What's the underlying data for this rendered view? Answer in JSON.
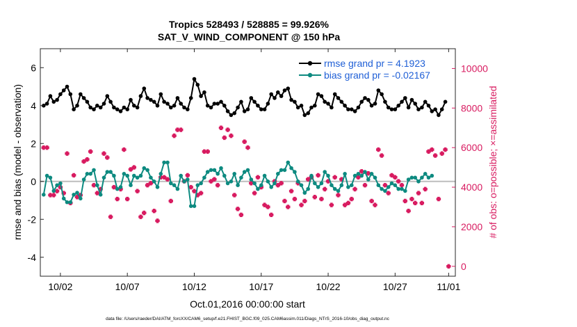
{
  "chart_data": {
    "type": "line",
    "title_line1": "Tropics 528493 / 528885 = 99.926%",
    "title_line2": "SAT_V_WIND_COMPONENT @ 150 hPa",
    "xlabel": "Oct.01,2016 00:00:00 start",
    "ylabel_left": "rmse and bias (model - observation)",
    "ylabel_right": "# of obs: o=possible; ×=assimilated",
    "footnote": "data file: /Users/raeder/DAI/ATM_forcXX/CAM6_setup/f.e21.FHIST_BGC.f09_025.CAM6assim.011/Diags_NTrS_2016-10/obs_diag_output.nc",
    "xlim": [
      0.5,
      31.5
    ],
    "ylim_left": [
      -5,
      7
    ],
    "ylim_right": [
      -500,
      11000
    ],
    "x_ticks": [
      {
        "value": 2,
        "label": "10/02"
      },
      {
        "value": 7,
        "label": "10/07"
      },
      {
        "value": 12,
        "label": "10/12"
      },
      {
        "value": 17,
        "label": "10/17"
      },
      {
        "value": 22,
        "label": "10/22"
      },
      {
        "value": 27,
        "label": "10/27"
      },
      {
        "value": 31,
        "label": "11/01"
      }
    ],
    "y_ticks_left": [
      {
        "value": -4,
        "label": "-4"
      },
      {
        "value": -2,
        "label": "-2"
      },
      {
        "value": 0,
        "label": "0"
      },
      {
        "value": 2,
        "label": "2"
      },
      {
        "value": 4,
        "label": "4"
      },
      {
        "value": 6,
        "label": "6"
      }
    ],
    "y_ticks_right": [
      {
        "value": 0,
        "label": "0"
      },
      {
        "value": 2000,
        "label": "2000"
      },
      {
        "value": 4000,
        "label": "4000"
      },
      {
        "value": 6000,
        "label": "6000"
      },
      {
        "value": 8000,
        "label": "8000"
      },
      {
        "value": 10000,
        "label": "10000"
      }
    ],
    "legend": [
      {
        "label": "rmse grand pr = 4.1923",
        "color": "#000000"
      },
      {
        "label": "bias grand pr = -0.02167",
        "color": "#0d8a80"
      }
    ],
    "colors": {
      "rmse": "#000000",
      "bias": "#0d8a80",
      "obs": "#d81b60",
      "text_blue": "#1f5fd6",
      "zero_line": "#bdbdbd"
    },
    "series": [
      {
        "name": "rmse",
        "axis": "left",
        "x_start": 0.75,
        "x_step": 0.25,
        "values": [
          4.0,
          4.1,
          4.5,
          4.2,
          4.3,
          4.6,
          4.8,
          5.0,
          4.6,
          3.8,
          4.0,
          4.6,
          4.4,
          4.2,
          3.9,
          3.8,
          4.0,
          3.9,
          4.1,
          4.5,
          4.2,
          3.9,
          3.8,
          3.7,
          3.9,
          3.8,
          4.3,
          4.0,
          3.9,
          4.5,
          4.9,
          4.4,
          4.3,
          4.2,
          4.0,
          4.6,
          4.2,
          4.1,
          3.9,
          4.0,
          4.4,
          4.1,
          3.9,
          3.8,
          4.4,
          5.4,
          5.1,
          4.5,
          4.7,
          4.0,
          3.9,
          4.1,
          4.1,
          4.2,
          4.0,
          3.7,
          3.5,
          3.6,
          3.9,
          4.2,
          3.7,
          3.8,
          4.4,
          4.2,
          4.0,
          3.8,
          3.8,
          4.1,
          4.6,
          4.4,
          4.7,
          4.5,
          4.8,
          4.9,
          4.3,
          4.2,
          3.9,
          4.0,
          3.5,
          3.6,
          3.9,
          4.0,
          4.6,
          4.5,
          4.2,
          4.1,
          3.9,
          4.6,
          4.4,
          4.2,
          4.0,
          3.8,
          3.8,
          3.7,
          3.9,
          4.2,
          4.4,
          4.3,
          4.0,
          4.1,
          4.8,
          4.6,
          4.2,
          3.9,
          3.8,
          3.8,
          4.0,
          4.2,
          4.4,
          3.9,
          4.3,
          4.1,
          3.8,
          3.9,
          4.2,
          4.0,
          3.7,
          3.8,
          3.5,
          3.8,
          4.2
        ]
      },
      {
        "name": "bias",
        "axis": "left",
        "x_start": 0.75,
        "x_step": 0.25,
        "values": [
          -0.7,
          0.3,
          0.2,
          -0.5,
          -0.2,
          -0.1,
          -0.9,
          -1.1,
          -1.1,
          -0.7,
          -0.6,
          -0.9,
          0.1,
          0.4,
          0.4,
          0.6,
          -0.2,
          -0.7,
          0.2,
          0.5,
          0.5,
          0.3,
          -0.4,
          -0.3,
          0.4,
          0.3,
          -0.2,
          0.3,
          0.2,
          0.3,
          0.7,
          0.6,
          0.2,
          0.0,
          -0.3,
          0.4,
          1.0,
          1.0,
          -0.1,
          -0.2,
          -0.4,
          0.3,
          0.0,
          0.1,
          -1.3,
          -1.3,
          -0.2,
          -0.1,
          0.2,
          0.5,
          0.6,
          0.6,
          0.4,
          0.7,
          0.3,
          -0.1,
          0.0,
          0.4,
          -0.2,
          0.2,
          0.5,
          0.6,
          0.1,
          -0.1,
          -0.4,
          -0.2,
          0.3,
          0.0,
          -0.3,
          -0.1,
          0.4,
          0.6,
          0.6,
          1.0,
          0.7,
          0.5,
          0.0,
          -0.2,
          -0.6,
          -0.4,
          0.3,
          -0.1,
          -0.3,
          -0.1,
          0.5,
          0.3,
          -0.2,
          -0.4,
          -0.5,
          -0.2,
          0.4,
          -0.3,
          -0.2,
          0.3,
          0.4,
          0.3,
          0.5,
          0.1,
          0.4,
          0.2,
          -0.2,
          -0.4,
          -0.5,
          -0.3,
          -0.1,
          -0.2,
          -0.4,
          -0.4,
          -0.5,
          0.1,
          0.2,
          0.2,
          0.0,
          0.2,
          0.4,
          0.2,
          0.3
        ]
      },
      {
        "name": "observations",
        "axis": "right",
        "x_start": 0.75,
        "x_step": 0.25,
        "values": [
          6000,
          6000,
          3600,
          3600,
          3800,
          4000,
          3700,
          5700,
          3200,
          4600,
          3500,
          3600,
          5300,
          5400,
          5800,
          4100,
          3700,
          3900,
          5700,
          5500,
          2500,
          4000,
          3400,
          3900,
          5900,
          3400,
          4900,
          5000,
          3800,
          2500,
          2700,
          4100,
          4200,
          2800,
          2300,
          4500,
          4500,
          4400,
          3300,
          6600,
          6900,
          6900,
          4300,
          4600,
          4000,
          3800,
          3600,
          3700,
          5800,
          5800,
          4300,
          4400,
          4100,
          7000,
          6500,
          6900,
          6600,
          3600,
          2900,
          2600,
          6300,
          6000,
          4200,
          3700,
          4500,
          4000,
          3100,
          3000,
          2600,
          4300,
          4100,
          4200,
          3300,
          3000,
          3800,
          3400,
          4200,
          3100,
          3300,
          4400,
          4500,
          3500,
          4600,
          3400,
          3900,
          4300,
          3100,
          4500,
          3600,
          4400,
          3100,
          3200,
          3400,
          3900,
          4500,
          4800,
          4100,
          4700,
          3300,
          3100,
          5900,
          5600,
          4100,
          3700,
          4600,
          4500,
          4300,
          4100,
          3300,
          2800,
          3400,
          3200,
          3700,
          3200,
          3900,
          5800,
          5900,
          5600,
          3400,
          5700,
          5900
        ]
      }
    ],
    "extra_obs_point": {
      "x": 31.0,
      "value": 0
    }
  }
}
